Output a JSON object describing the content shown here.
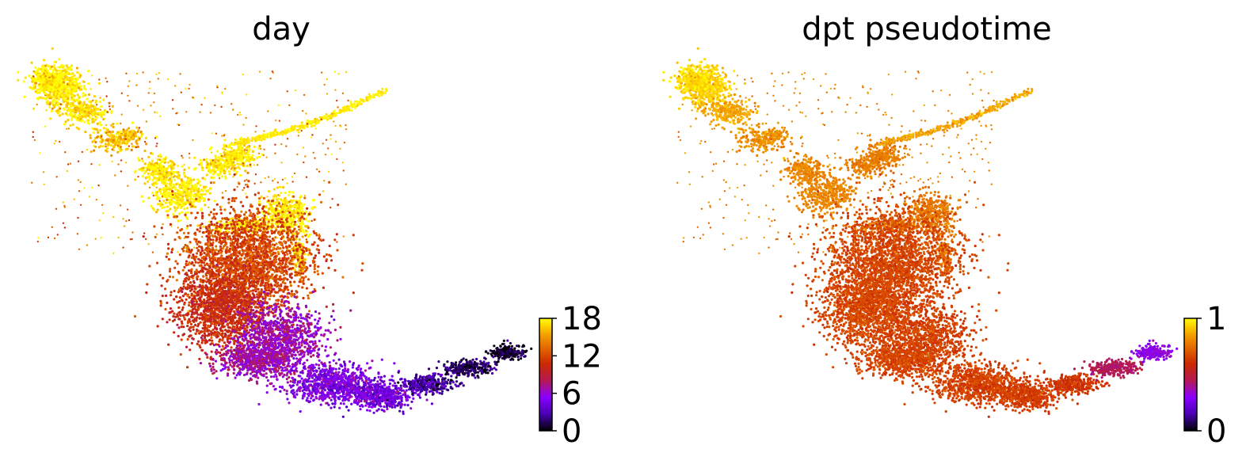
{
  "chart_data": [
    {
      "type": "scatter",
      "title": "day",
      "color_label": "day",
      "colormap": "gnuplot",
      "colorbar": {
        "ticks": [
          0,
          6,
          12,
          18
        ],
        "tick_labels": [
          "0",
          "6",
          "12",
          "18"
        ],
        "range": [
          0,
          18
        ],
        "placement": "right"
      },
      "axes": "off",
      "colormap_stops": [
        "#000000",
        "#4a00b4",
        "#8a00ff",
        "#b41a50",
        "#cc2a00",
        "#e06000",
        "#f09800",
        "#ffd800",
        "#ffff00"
      ]
    },
    {
      "type": "scatter",
      "title": "dpt pseudotime",
      "color_label": "dpt pseudotime",
      "colormap": "gnuplot",
      "colorbar": {
        "ticks": [
          0,
          1
        ],
        "tick_labels": [
          "0",
          "1"
        ],
        "range": [
          0,
          1
        ],
        "placement": "right"
      },
      "axes": "off",
      "colormap_stops": [
        "#000000",
        "#4a00b4",
        "#8a00ff",
        "#b41a50",
        "#cc2a00",
        "#e06000",
        "#f09800",
        "#ffd800",
        "#ffff00"
      ]
    }
  ]
}
